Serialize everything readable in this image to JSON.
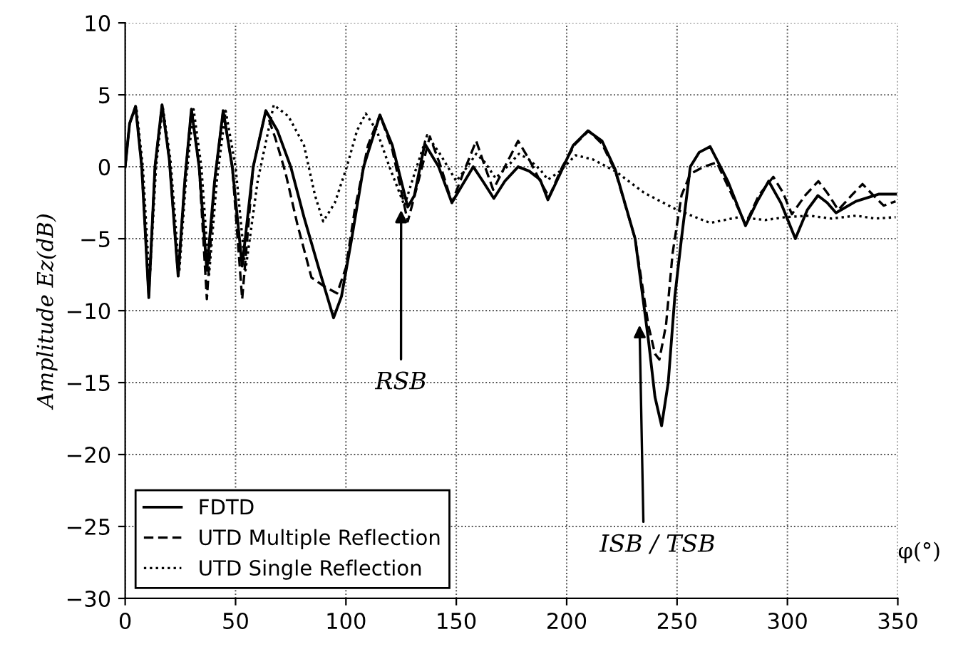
{
  "chart_data": {
    "type": "line",
    "xlabel": "φ(°)",
    "ylabel": "Amplitude Ez(dB)",
    "xlim": [
      0,
      350
    ],
    "ylim": [
      -30,
      10
    ],
    "xticks": [
      0,
      50,
      100,
      150,
      200,
      250,
      300,
      350
    ],
    "yticks": [
      -30,
      -25,
      -20,
      -15,
      -10,
      -5,
      0,
      5,
      10
    ],
    "grid": true,
    "legend": "bottom left",
    "marker": "none",
    "annotations": [
      {
        "text": "RSB",
        "x": 125,
        "y": -3
      },
      {
        "text": "ISB / TSB",
        "x": 233,
        "y": -11
      }
    ],
    "series": [
      {
        "name": "FDTD",
        "color": "#000000",
        "line_style": "solid",
        "x": [
          0,
          2,
          4.7,
          7.5,
          10.7,
          13.5,
          16.7,
          20,
          24,
          27,
          30,
          33.5,
          37,
          40.5,
          44.4,
          48.5,
          53,
          58,
          63.7,
          69,
          75,
          81,
          87.6,
          94.4,
          98,
          102.6,
          108,
          115.4,
          121,
          128,
          131,
          135.7,
          142,
          148,
          153,
          157.7,
          162,
          167,
          172,
          178,
          183,
          188,
          191.5,
          197,
          203,
          209.6,
          216,
          222,
          231,
          237,
          240,
          243,
          246,
          249,
          252,
          256,
          260,
          265,
          273,
          281,
          286,
          291.5,
          297,
          303.6,
          309,
          313.8,
          318,
          322,
          331,
          341.5,
          349
        ],
        "values": [
          0,
          3,
          4.2,
          0,
          -9.1,
          0,
          4.3,
          0.5,
          -7.6,
          -1,
          4.0,
          0,
          -7.2,
          -1,
          3.9,
          0,
          -6.9,
          0,
          3.9,
          2.5,
          0,
          -3.5,
          -7,
          -10.5,
          -9,
          -5,
          0,
          3.6,
          1.5,
          -2.8,
          -2,
          1.6,
          0,
          -2.5,
          -1.2,
          0,
          -1,
          -2.2,
          -1,
          0,
          -0.3,
          -0.9,
          -2.3,
          -0.5,
          1.5,
          2.5,
          1.8,
          -0.2,
          -5,
          -12,
          -16,
          -18,
          -15,
          -9,
          -5,
          0,
          1,
          1.4,
          -1,
          -4.1,
          -2.5,
          -1,
          -2.5,
          -5,
          -3,
          -2,
          -2.5,
          -3.2,
          -2.4,
          -1.9,
          -1.9
        ]
      },
      {
        "name": "UTD Multiple Reflection",
        "color": "#000000",
        "line_style": "dashed",
        "x": [
          0,
          2,
          4.7,
          7.5,
          10.7,
          13.5,
          16.7,
          20,
          24,
          27,
          30,
          33.5,
          37,
          40.5,
          44.4,
          48.5,
          53,
          58,
          63.7,
          68,
          72.6,
          78,
          84.4,
          90,
          96,
          100,
          104,
          110,
          115.4,
          121,
          128,
          132,
          138,
          143,
          148,
          153,
          159,
          163,
          166.7,
          172,
          178,
          183,
          188,
          192,
          198,
          204,
          210,
          216,
          222,
          231,
          237,
          240,
          242,
          245,
          248,
          252,
          256,
          262,
          268,
          275,
          281,
          287,
          293.6,
          298,
          302,
          308,
          314,
          318,
          323,
          329,
          334,
          339,
          343.6,
          349
        ],
        "values": [
          0,
          3,
          4.2,
          0,
          -9,
          0,
          4.3,
          0.5,
          -7.6,
          -1,
          4.0,
          0,
          -9.2,
          -1,
          3.9,
          0,
          -9.2,
          0,
          3.9,
          2,
          -0.4,
          -4,
          -7.7,
          -8.3,
          -8.8,
          -7,
          -3,
          1.5,
          3.6,
          1.2,
          -3.8,
          -1.5,
          2.1,
          0,
          -2.5,
          -0.5,
          1.8,
          0,
          -1.6,
          0,
          1.8,
          0.5,
          -1,
          -2.1,
          0,
          1.6,
          2.5,
          1.6,
          -0.3,
          -5,
          -11,
          -13,
          -13.4,
          -11,
          -6,
          -2,
          -0.5,
          0,
          0.3,
          -2,
          -4,
          -2,
          -0.7,
          -1.8,
          -3.3,
          -2,
          -1,
          -1.8,
          -3,
          -2,
          -1.2,
          -2,
          -2.7,
          -2.4
        ]
      },
      {
        "name": "UTD Single Reflection",
        "color": "#000000",
        "line_style": "dotted",
        "x": [
          0,
          2,
          5,
          8,
          11,
          14,
          17,
          20.5,
          24.5,
          27.5,
          31,
          34.5,
          38,
          41.5,
          45.5,
          50,
          54.5,
          60,
          67.3,
          74,
          81,
          86,
          89.7,
          95,
          100.4,
          105,
          109,
          114,
          119.7,
          126.5,
          131,
          136.8,
          143,
          150,
          155,
          159,
          163,
          167.8,
          173,
          178.4,
          183,
          188,
          191.5,
          197,
          204,
          212,
          222,
          235,
          250,
          265,
          278,
          290,
          299,
          310,
          320,
          331,
          340,
          349
        ],
        "values": [
          0,
          3,
          4.2,
          0,
          -8,
          0,
          4.2,
          0.5,
          -7.3,
          -1,
          4.0,
          0,
          -7.5,
          -1,
          3.9,
          0,
          -7.2,
          -1,
          4.3,
          3.5,
          1.5,
          -2,
          -3.8,
          -2.5,
          0,
          2.5,
          3.7,
          2.5,
          0,
          -2.7,
          -0.5,
          2.2,
          0.8,
          -1,
          0,
          0.9,
          0.3,
          -0.8,
          0,
          0.9,
          0.5,
          -0.2,
          -0.9,
          -0.3,
          0.8,
          0.5,
          -0.3,
          -1.8,
          -3,
          -3.9,
          -3.5,
          -3.7,
          -3.5,
          -3.4,
          -3.6,
          -3.4,
          -3.6,
          -3.5
        ]
      }
    ]
  }
}
